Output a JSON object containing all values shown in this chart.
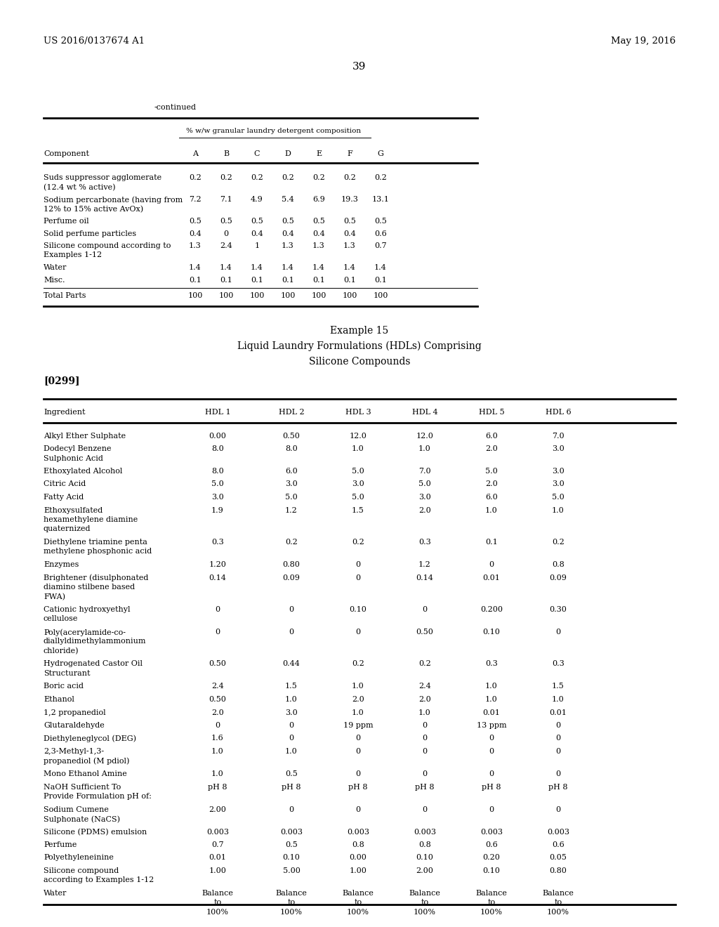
{
  "header_left": "US 2016/0137674 A1",
  "header_right": "May 19, 2016",
  "page_number": "39",
  "continued_label": "-continued",
  "table1_subtitle": "% w/w granular laundry detergent composition",
  "table1_headers": [
    "Component",
    "A",
    "B",
    "C",
    "D",
    "E",
    "F",
    "G"
  ],
  "table1_rows": [
    [
      "Suds suppressor agglomerate\n(12.4 wt % active)",
      "0.2",
      "0.2",
      "0.2",
      "0.2",
      "0.2",
      "0.2",
      "0.2"
    ],
    [
      "Sodium percarbonate (having from\n12% to 15% active AvOx)",
      "7.2",
      "7.1",
      "4.9",
      "5.4",
      "6.9",
      "19.3",
      "13.1"
    ],
    [
      "Perfume oil",
      "0.5",
      "0.5",
      "0.5",
      "0.5",
      "0.5",
      "0.5",
      "0.5"
    ],
    [
      "Solid perfume particles",
      "0.4",
      "0",
      "0.4",
      "0.4",
      "0.4",
      "0.4",
      "0.6"
    ],
    [
      "Silicone compound according to\nExamples 1-12",
      "1.3",
      "2.4",
      "1",
      "1.3",
      "1.3",
      "1.3",
      "0.7"
    ],
    [
      "Water",
      "1.4",
      "1.4",
      "1.4",
      "1.4",
      "1.4",
      "1.4",
      "1.4"
    ],
    [
      "Misc.",
      "0.1",
      "0.1",
      "0.1",
      "0.1",
      "0.1",
      "0.1",
      "0.1"
    ]
  ],
  "table1_total_row": [
    "Total Parts",
    "100",
    "100",
    "100",
    "100",
    "100",
    "100",
    "100"
  ],
  "example_title": "Example 15",
  "example_subtitle1": "Liquid Laundry Formulations (HDLs) Comprising",
  "example_subtitle2": "Silicone Compounds",
  "paragraph_ref": "[0299]",
  "table2_headers": [
    "Ingredient",
    "HDL 1",
    "HDL 2",
    "HDL 3",
    "HDL 4",
    "HDL 5",
    "HDL 6"
  ],
  "table2_rows": [
    [
      "Alkyl Ether Sulphate",
      "0.00",
      "0.50",
      "12.0",
      "12.0",
      "6.0",
      "7.0"
    ],
    [
      "Dodecyl Benzene\nSulphonic Acid",
      "8.0",
      "8.0",
      "1.0",
      "1.0",
      "2.0",
      "3.0"
    ],
    [
      "Ethoxylated Alcohol",
      "8.0",
      "6.0",
      "5.0",
      "7.0",
      "5.0",
      "3.0"
    ],
    [
      "Citric Acid",
      "5.0",
      "3.0",
      "3.0",
      "5.0",
      "2.0",
      "3.0"
    ],
    [
      "Fatty Acid",
      "3.0",
      "5.0",
      "5.0",
      "3.0",
      "6.0",
      "5.0"
    ],
    [
      "Ethoxysulfated\nhexamethylene diamine\nquaternized",
      "1.9",
      "1.2",
      "1.5",
      "2.0",
      "1.0",
      "1.0"
    ],
    [
      "Diethylene triamine penta\nmethylene phosphonic acid",
      "0.3",
      "0.2",
      "0.2",
      "0.3",
      "0.1",
      "0.2"
    ],
    [
      "Enzymes",
      "1.20",
      "0.80",
      "0",
      "1.2",
      "0",
      "0.8"
    ],
    [
      "Brightener (disulphonated\ndiamino stilbene based\nFWA)",
      "0.14",
      "0.09",
      "0",
      "0.14",
      "0.01",
      "0.09"
    ],
    [
      "Cationic hydroxyethyl\ncellulose",
      "0",
      "0",
      "0.10",
      "0",
      "0.200",
      "0.30"
    ],
    [
      "Poly(acerylamide-co-\ndiallyldimethylammonium\nchloride)",
      "0",
      "0",
      "0",
      "0.50",
      "0.10",
      "0"
    ],
    [
      "Hydrogenated Castor Oil\nStructurant",
      "0.50",
      "0.44",
      "0.2",
      "0.2",
      "0.3",
      "0.3"
    ],
    [
      "Boric acid",
      "2.4",
      "1.5",
      "1.0",
      "2.4",
      "1.0",
      "1.5"
    ],
    [
      "Ethanol",
      "0.50",
      "1.0",
      "2.0",
      "2.0",
      "1.0",
      "1.0"
    ],
    [
      "1,2 propanediol",
      "2.0",
      "3.0",
      "1.0",
      "1.0",
      "0.01",
      "0.01"
    ],
    [
      "Glutaraldehyde",
      "0",
      "0",
      "19 ppm",
      "0",
      "13 ppm",
      "0"
    ],
    [
      "Diethyleneglycol (DEG)",
      "1.6",
      "0",
      "0",
      "0",
      "0",
      "0"
    ],
    [
      "2,3-Methyl-1,3-\npropanediol (M pdiol)",
      "1.0",
      "1.0",
      "0",
      "0",
      "0",
      "0"
    ],
    [
      "Mono Ethanol Amine",
      "1.0",
      "0.5",
      "0",
      "0",
      "0",
      "0"
    ],
    [
      "NaOH Sufficient To\nProvide Formulation pH of:",
      "pH 8",
      "pH 8",
      "pH 8",
      "pH 8",
      "pH 8",
      "pH 8"
    ],
    [
      "Sodium Cumene\nSulphonate (NaCS)",
      "2.00",
      "0",
      "0",
      "0",
      "0",
      "0"
    ],
    [
      "Silicone (PDMS) emulsion",
      "0.003",
      "0.003",
      "0.003",
      "0.003",
      "0.003",
      "0.003"
    ],
    [
      "Perfume",
      "0.7",
      "0.5",
      "0.8",
      "0.8",
      "0.6",
      "0.6"
    ],
    [
      "Polyethyleneinine",
      "0.01",
      "0.10",
      "0.00",
      "0.10",
      "0.20",
      "0.05"
    ],
    [
      "Silicone compound\naccording to Examples 1-12",
      "1.00",
      "5.00",
      "1.00",
      "2.00",
      "0.10",
      "0.80"
    ],
    [
      "Water",
      "Balance\nto\n100%",
      "Balance\nto\n100%",
      "Balance\nto\n100%",
      "Balance\nto\n100%",
      "Balance\nto\n100%",
      "Balance\nto\n100%"
    ]
  ],
  "bg_color": "#ffffff",
  "text_color": "#000000",
  "font_size": 8.0,
  "header_font_size": 9.5
}
